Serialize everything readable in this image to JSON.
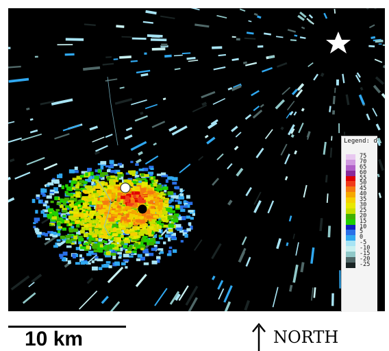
{
  "map": {
    "type": "radar-reflectivity",
    "markers": [
      {
        "name": "radar-site",
        "shape": "star",
        "color": "#ffffff"
      },
      {
        "name": "white-point",
        "shape": "circle",
        "color": "#ffffff"
      },
      {
        "name": "black-point",
        "shape": "circle",
        "color": "#000000"
      }
    ]
  },
  "legend": {
    "title": "Legend: dBZ",
    "entries": [
      {
        "label": "75",
        "color": "#e8c8f0"
      },
      {
        "label": "70",
        "color": "#d09ae0"
      },
      {
        "label": "65",
        "color": "#b060c8"
      },
      {
        "label": "60",
        "color": "#8a2a9a"
      },
      {
        "label": "55",
        "color": "#e00000"
      },
      {
        "label": "50",
        "color": "#f03a1a"
      },
      {
        "label": "45",
        "color": "#f57a10"
      },
      {
        "label": "40",
        "color": "#f5a800"
      },
      {
        "label": "35",
        "color": "#f5d000"
      },
      {
        "label": "30",
        "color": "#e8e800"
      },
      {
        "label": "25",
        "color": "#c8e000"
      },
      {
        "label": "20",
        "color": "#40b000"
      },
      {
        "label": "15",
        "color": "#20d000"
      },
      {
        "label": "10",
        "color": "#1020c0"
      },
      {
        "label": "5",
        "color": "#2a70e8"
      },
      {
        "label": "0",
        "color": "#30a8f0"
      },
      {
        "label": "-5",
        "color": "#a8e4f4"
      },
      {
        "label": "-10",
        "color": "#c8f0f0"
      },
      {
        "label": "-15",
        "color": "#90c8c8"
      },
      {
        "label": "-20",
        "color": "#506868"
      },
      {
        "label": "-25",
        "color": "#1a2424"
      }
    ]
  },
  "scale_bar": {
    "label": "10 km"
  },
  "north": {
    "label": "NORTH"
  }
}
